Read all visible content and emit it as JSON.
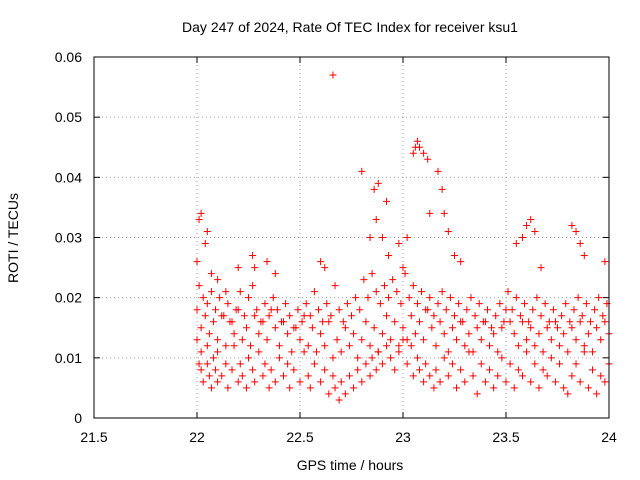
{
  "chart_data": {
    "type": "scatter",
    "title": "Day 247 of 2024, Rate Of TEC Index for receiver ksu1",
    "xlabel": "GPS time / hours",
    "ylabel": "ROTI / TECUs",
    "xlim": [
      21.5,
      24
    ],
    "ylim": [
      0,
      0.06
    ],
    "xticks": [
      21.5,
      22,
      22.5,
      23,
      23.5,
      24
    ],
    "xtick_labels": [
      "21.5",
      "22",
      "22.5",
      "23",
      "23.5",
      "24"
    ],
    "yticks": [
      0,
      0.01,
      0.02,
      0.03,
      0.04,
      0.05,
      0.06
    ],
    "ytick_labels": [
      "0",
      "0.01",
      "0.02",
      "0.03",
      "0.04",
      "0.05",
      "0.06"
    ],
    "grid": true,
    "marker": "+",
    "marker_color": "#ff0000",
    "series": [
      {
        "name": "ksu1",
        "x": [
          22.0,
          22.01,
          22.02,
          22.02,
          22.03,
          22.05,
          22.05,
          22.06,
          22.07,
          22.08,
          22.09,
          22.1,
          22.1,
          22.12,
          22.14,
          22.15,
          22.17,
          22.18,
          22.2,
          22.21,
          22.22,
          22.24,
          22.25,
          22.27,
          22.28,
          22.3,
          22.32,
          22.33,
          22.35,
          22.36,
          22.38,
          22.4,
          22.42,
          22.44,
          22.45,
          22.47,
          22.5,
          22.52,
          22.54,
          22.55,
          22.57,
          22.6,
          22.62,
          22.64,
          22.66,
          22.67,
          22.69,
          22.7,
          22.72,
          22.74,
          22.76,
          22.78,
          22.8,
          22.82,
          22.84,
          22.85,
          22.87,
          22.88,
          22.9,
          22.92,
          22.94,
          22.96,
          22.98,
          23.0,
          23.02,
          23.04,
          23.05,
          23.07,
          23.08,
          23.1,
          23.11,
          23.13,
          23.15,
          23.16,
          23.18,
          23.2,
          23.22,
          23.24,
          23.26,
          23.28,
          23.3,
          23.32,
          23.34,
          23.36,
          23.38,
          23.4,
          23.42,
          23.44,
          23.46,
          23.48,
          23.5,
          23.52,
          23.54,
          23.56,
          23.58,
          23.6,
          23.62,
          23.64,
          23.66,
          23.68,
          23.7,
          23.72,
          23.74,
          23.76,
          23.78,
          23.8,
          23.82,
          23.84,
          23.86,
          23.88,
          23.9,
          23.92,
          23.94,
          23.96,
          23.98,
          24.0,
          22.0,
          22.02,
          22.04,
          22.06,
          22.08,
          22.1,
          22.12,
          22.14,
          22.16,
          22.18,
          22.2,
          22.22,
          22.24,
          22.26,
          22.28,
          22.3,
          22.32,
          22.34,
          22.36,
          22.38,
          22.4,
          22.42,
          22.44,
          22.46,
          22.48,
          22.5,
          22.52,
          22.54,
          22.56,
          22.58,
          22.6,
          22.62,
          22.64,
          22.66,
          22.68,
          22.7,
          22.72,
          22.74,
          22.76,
          22.78,
          22.8,
          22.82,
          22.84,
          22.86,
          22.88,
          22.9,
          22.92,
          22.94,
          22.96,
          22.98,
          23.0,
          23.02,
          23.04,
          23.06,
          23.08,
          23.1,
          23.12,
          23.14,
          23.16,
          23.18,
          23.2,
          23.22,
          23.24,
          23.26,
          23.28,
          23.3,
          23.32,
          23.34,
          23.36,
          23.38,
          23.4,
          23.42,
          23.44,
          23.46,
          23.48,
          23.5,
          23.52,
          23.54,
          23.56,
          23.58,
          23.6,
          23.62,
          23.64,
          23.66,
          23.68,
          23.7,
          23.72,
          23.74,
          23.76,
          23.78,
          23.8,
          23.82,
          23.84,
          23.86,
          23.88,
          23.9,
          23.92,
          23.94,
          23.96,
          23.98,
          24.0,
          22.01,
          22.03,
          22.05,
          22.07,
          22.09,
          22.11,
          22.13,
          22.15,
          22.17,
          22.19,
          22.21,
          22.23,
          22.25,
          22.27,
          22.29,
          22.31,
          22.33,
          22.35,
          22.37,
          22.39,
          22.41,
          22.43,
          22.45,
          22.47,
          22.49,
          22.51,
          22.53,
          22.55,
          22.57,
          22.59,
          22.61,
          22.63,
          22.65,
          22.67,
          22.69,
          22.71,
          22.73,
          22.75,
          22.77,
          22.79,
          22.81,
          22.83,
          22.85,
          22.87,
          22.89,
          22.91,
          22.93,
          22.95,
          22.97,
          22.99,
          23.01,
          23.03,
          23.05,
          23.07,
          23.09,
          23.11,
          23.13,
          23.15,
          23.17,
          23.19,
          23.21,
          23.23,
          23.25,
          23.27,
          23.29,
          23.31,
          23.33,
          23.35,
          23.37,
          23.39,
          23.41,
          23.43,
          23.45,
          23.47,
          23.49,
          23.51,
          23.53,
          23.55,
          23.57,
          23.59,
          23.61,
          23.63,
          23.65,
          23.67,
          23.69,
          23.71,
          23.73,
          23.75,
          23.77,
          23.79,
          23.81,
          23.83,
          23.85,
          23.87,
          23.89,
          23.91,
          23.93,
          23.95,
          23.97,
          23.99,
          22.0,
          22.01,
          22.02,
          22.04,
          22.05,
          22.07,
          22.1,
          22.14,
          22.2,
          22.27,
          22.28,
          22.34,
          22.38,
          22.6,
          22.62,
          22.66,
          22.8,
          22.84,
          22.86,
          22.87,
          22.88,
          22.9,
          22.92,
          22.93,
          22.98,
          23.0,
          23.02,
          23.05,
          23.06,
          23.07,
          23.08,
          23.1,
          23.12,
          23.13,
          23.17,
          23.19,
          23.2,
          23.22,
          23.25,
          23.28,
          23.55,
          23.58,
          23.6,
          23.62,
          23.64,
          23.67,
          23.82,
          23.84,
          23.86,
          23.88,
          23.98
        ],
        "y": [
          0.013,
          0.009,
          0.008,
          0.011,
          0.006,
          0.009,
          0.012,
          0.007,
          0.005,
          0.01,
          0.008,
          0.006,
          0.011,
          0.007,
          0.009,
          0.005,
          0.008,
          0.012,
          0.006,
          0.009,
          0.007,
          0.005,
          0.01,
          0.008,
          0.006,
          0.011,
          0.007,
          0.009,
          0.005,
          0.008,
          0.006,
          0.01,
          0.007,
          0.009,
          0.005,
          0.008,
          0.006,
          0.011,
          0.007,
          0.005,
          0.009,
          0.006,
          0.008,
          0.004,
          0.007,
          0.005,
          0.003,
          0.006,
          0.004,
          0.007,
          0.005,
          0.008,
          0.006,
          0.009,
          0.007,
          0.01,
          0.008,
          0.011,
          0.009,
          0.012,
          0.01,
          0.008,
          0.011,
          0.013,
          0.009,
          0.012,
          0.007,
          0.01,
          0.008,
          0.006,
          0.009,
          0.007,
          0.005,
          0.008,
          0.006,
          0.01,
          0.007,
          0.009,
          0.005,
          0.008,
          0.006,
          0.011,
          0.007,
          0.004,
          0.009,
          0.006,
          0.008,
          0.005,
          0.007,
          0.01,
          0.006,
          0.009,
          0.005,
          0.008,
          0.007,
          0.011,
          0.006,
          0.009,
          0.005,
          0.008,
          0.007,
          0.01,
          0.006,
          0.009,
          0.005,
          0.004,
          0.007,
          0.009,
          0.006,
          0.011,
          0.005,
          0.008,
          0.004,
          0.007,
          0.006,
          0.009,
          0.018,
          0.015,
          0.017,
          0.014,
          0.016,
          0.013,
          0.017,
          0.012,
          0.016,
          0.014,
          0.018,
          0.013,
          0.015,
          0.012,
          0.017,
          0.014,
          0.016,
          0.013,
          0.018,
          0.015,
          0.012,
          0.016,
          0.014,
          0.011,
          0.015,
          0.013,
          0.017,
          0.012,
          0.015,
          0.011,
          0.014,
          0.012,
          0.016,
          0.01,
          0.013,
          0.011,
          0.015,
          0.012,
          0.014,
          0.01,
          0.013,
          0.016,
          0.012,
          0.015,
          0.011,
          0.014,
          0.017,
          0.013,
          0.016,
          0.012,
          0.015,
          0.013,
          0.017,
          0.014,
          0.016,
          0.013,
          0.018,
          0.015,
          0.012,
          0.016,
          0.014,
          0.011,
          0.015,
          0.013,
          0.016,
          0.012,
          0.014,
          0.011,
          0.015,
          0.013,
          0.016,
          0.012,
          0.014,
          0.011,
          0.015,
          0.018,
          0.016,
          0.014,
          0.012,
          0.016,
          0.013,
          0.015,
          0.012,
          0.014,
          0.011,
          0.015,
          0.013,
          0.016,
          0.012,
          0.014,
          0.011,
          0.015,
          0.013,
          0.016,
          0.012,
          0.014,
          0.011,
          0.015,
          0.013,
          0.016,
          0.014,
          0.022,
          0.02,
          0.019,
          0.021,
          0.018,
          0.02,
          0.017,
          0.019,
          0.016,
          0.018,
          0.021,
          0.017,
          0.02,
          0.022,
          0.018,
          0.016,
          0.019,
          0.017,
          0.02,
          0.018,
          0.016,
          0.019,
          0.017,
          0.015,
          0.018,
          0.016,
          0.019,
          0.017,
          0.021,
          0.018,
          0.016,
          0.019,
          0.017,
          0.022,
          0.018,
          0.016,
          0.019,
          0.017,
          0.02,
          0.018,
          0.023,
          0.02,
          0.024,
          0.021,
          0.019,
          0.022,
          0.02,
          0.023,
          0.021,
          0.019,
          0.024,
          0.02,
          0.022,
          0.019,
          0.021,
          0.018,
          0.02,
          0.017,
          0.019,
          0.021,
          0.018,
          0.02,
          0.017,
          0.019,
          0.016,
          0.018,
          0.02,
          0.017,
          0.019,
          0.016,
          0.018,
          0.015,
          0.017,
          0.019,
          0.016,
          0.021,
          0.018,
          0.02,
          0.017,
          0.019,
          0.016,
          0.018,
          0.02,
          0.017,
          0.019,
          0.016,
          0.018,
          0.015,
          0.017,
          0.019,
          0.016,
          0.018,
          0.02,
          0.017,
          0.019,
          0.016,
          0.018,
          0.02,
          0.017,
          0.019,
          0.026,
          0.033,
          0.034,
          0.029,
          0.031,
          0.024,
          0.023,
          0.021,
          0.025,
          0.027,
          0.025,
          0.026,
          0.024,
          0.026,
          0.025,
          0.057,
          0.041,
          0.03,
          0.038,
          0.033,
          0.039,
          0.03,
          0.036,
          0.027,
          0.029,
          0.025,
          0.03,
          0.044,
          0.045,
          0.046,
          0.045,
          0.044,
          0.043,
          0.034,
          0.041,
          0.038,
          0.034,
          0.031,
          0.027,
          0.026,
          0.029,
          0.03,
          0.032,
          0.033,
          0.031,
          0.025,
          0.032,
          0.031,
          0.029,
          0.027,
          0.026
        ]
      }
    ]
  }
}
